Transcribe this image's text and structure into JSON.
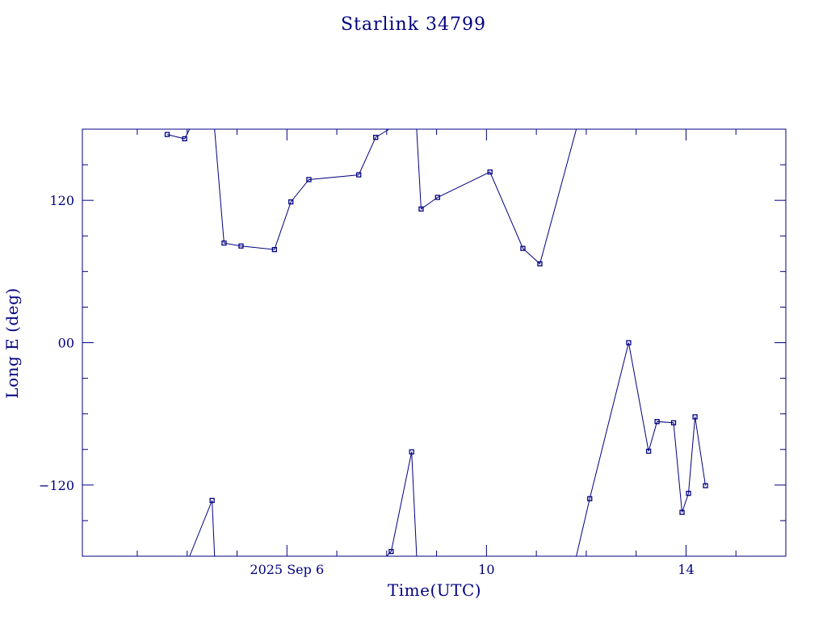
{
  "colors": {
    "ink": "#000080",
    "background": "#ffffff"
  },
  "chart_data": {
    "type": "line",
    "title": "Starlink 34799",
    "xlabel": "Time(UTC)",
    "ylabel": "Long E (deg)",
    "x_unit": "days (Sep 2025)",
    "xlim": [
      1.9,
      16.0
    ],
    "ylim": [
      -180,
      180
    ],
    "grid": false,
    "marker": "square",
    "x_tick_labels": [
      {
        "value": 6,
        "label": "2025 Sep  6"
      },
      {
        "value": 10,
        "label": "10"
      },
      {
        "value": 14,
        "label": "14"
      }
    ],
    "y_tick_labels": [
      {
        "value": 120,
        "label": "120"
      },
      {
        "value": 0,
        "label": "00"
      },
      {
        "value": -120,
        "label": "−120"
      }
    ],
    "series": [
      {
        "points": [
          {
            "x": 3.6,
            "y": 175.5
          },
          {
            "x": 3.95,
            "y": 171.9
          },
          {
            "x": 4.05,
            "y": 180.0
          }
        ]
      },
      {
        "points": [
          {
            "x": 4.55,
            "y": 180.0
          },
          {
            "x": 4.74,
            "y": 84.0
          },
          {
            "x": 5.08,
            "y": 81.5
          },
          {
            "x": 5.75,
            "y": 78.5
          },
          {
            "x": 6.08,
            "y": 118.7
          },
          {
            "x": 6.44,
            "y": 137.5
          },
          {
            "x": 7.44,
            "y": 141.5
          },
          {
            "x": 7.78,
            "y": 173.1
          },
          {
            "x": 8.05,
            "y": 180.0
          }
        ]
      },
      {
        "points": [
          {
            "x": 8.6,
            "y": 180.0
          },
          {
            "x": 8.69,
            "y": 112.7
          },
          {
            "x": 9.02,
            "y": 122.5
          },
          {
            "x": 10.07,
            "y": 143.9
          },
          {
            "x": 10.73,
            "y": 79.5
          },
          {
            "x": 11.07,
            "y": 66.5
          },
          {
            "x": 11.8,
            "y": 180.0
          }
        ]
      },
      {
        "points": [
          {
            "x": 4.05,
            "y": -180.0
          },
          {
            "x": 4.5,
            "y": -133.0
          },
          {
            "x": 4.55,
            "y": -180.0
          }
        ]
      },
      {
        "points": [
          {
            "x": 8.0,
            "y": -180.0
          },
          {
            "x": 8.09,
            "y": -176.0
          },
          {
            "x": 8.5,
            "y": -92.0
          },
          {
            "x": 8.6,
            "y": -180.0
          }
        ]
      },
      {
        "points": [
          {
            "x": 11.8,
            "y": -180.0
          },
          {
            "x": 12.07,
            "y": -131.5
          },
          {
            "x": 12.85,
            "y": 0.0
          },
          {
            "x": 13.25,
            "y": -91.5
          },
          {
            "x": 13.42,
            "y": -66.5
          },
          {
            "x": 13.75,
            "y": -67.5
          },
          {
            "x": 13.92,
            "y": -143.0
          },
          {
            "x": 14.05,
            "y": -127.0
          },
          {
            "x": 14.18,
            "y": -62.5
          },
          {
            "x": 14.39,
            "y": -120.5
          }
        ]
      }
    ]
  }
}
